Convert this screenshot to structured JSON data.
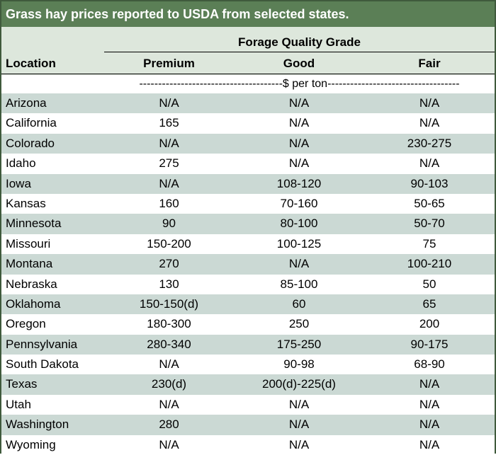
{
  "title": "Grass hay prices reported to USDA from selected states.",
  "group_header": "Forage Quality Grade",
  "columns": {
    "location": "Location",
    "premium": "Premium",
    "good": "Good",
    "fair": "Fair"
  },
  "unit_label": "--------------------------------------$ per ton-----------------------------------",
  "colors": {
    "title_bar": "#5b7f56",
    "header_bg": "#dde7dc",
    "stripe": "#cbd9d4"
  },
  "rows": [
    {
      "location": "Arizona",
      "premium": "N/A",
      "good": "N/A",
      "fair": "N/A"
    },
    {
      "location": "California",
      "premium": "165",
      "good": "N/A",
      "fair": "N/A"
    },
    {
      "location": "Colorado",
      "premium": "N/A",
      "good": "N/A",
      "fair": "230-275"
    },
    {
      "location": "Idaho",
      "premium": "275",
      "good": "N/A",
      "fair": "N/A"
    },
    {
      "location": "Iowa",
      "premium": "N/A",
      "good": "108-120",
      "fair": "90-103"
    },
    {
      "location": "Kansas",
      "premium": "160",
      "good": "70-160",
      "fair": "50-65"
    },
    {
      "location": "Minnesota",
      "premium": "90",
      "good": "80-100",
      "fair": "50-70"
    },
    {
      "location": "Missouri",
      "premium": "150-200",
      "good": "100-125",
      "fair": "75"
    },
    {
      "location": "Montana",
      "premium": "270",
      "good": "N/A",
      "fair": "100-210"
    },
    {
      "location": "Nebraska",
      "premium": "130",
      "good": "85-100",
      "fair": "50"
    },
    {
      "location": "Oklahoma",
      "premium": "150-150(d)",
      "good": "60",
      "fair": "65"
    },
    {
      "location": "Oregon",
      "premium": "180-300",
      "good": "250",
      "fair": "200"
    },
    {
      "location": "Pennsylvania",
      "premium": "280-340",
      "good": "175-250",
      "fair": "90-175"
    },
    {
      "location": "South Dakota",
      "premium": "N/A",
      "good": "90-98",
      "fair": "68-90"
    },
    {
      "location": "Texas",
      "premium": "230(d)",
      "good": "200(d)-225(d)",
      "fair": "N/A"
    },
    {
      "location": "Utah",
      "premium": "N/A",
      "good": "N/A",
      "fair": "N/A"
    },
    {
      "location": "Washington",
      "premium": "280",
      "good": "N/A",
      "fair": "N/A"
    },
    {
      "location": "Wyoming",
      "premium": "N/A",
      "good": "N/A",
      "fair": "N/A"
    }
  ]
}
